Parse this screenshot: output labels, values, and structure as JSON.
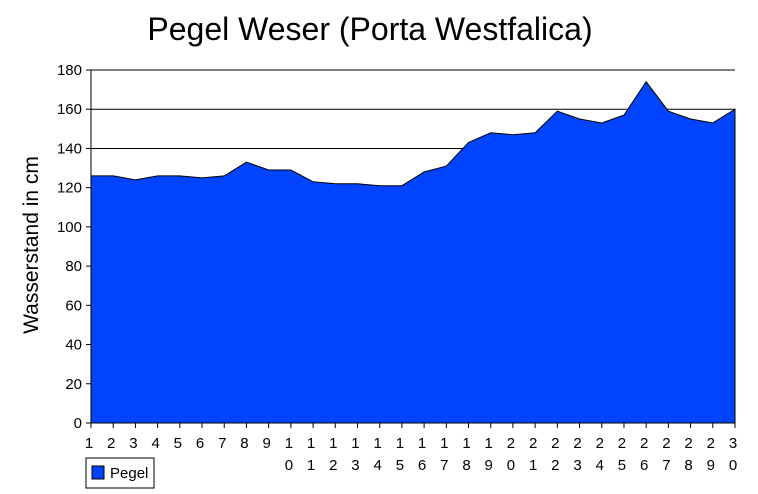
{
  "chart_data": {
    "type": "area",
    "title": "Pegel Weser (Porta Westfalica)",
    "xlabel": "",
    "ylabel": "Wasserstand in cm",
    "x": [
      1,
      2,
      3,
      4,
      5,
      6,
      7,
      8,
      9,
      10,
      11,
      12,
      13,
      14,
      15,
      16,
      17,
      18,
      19,
      20,
      21,
      22,
      23,
      24,
      25,
      26,
      27,
      28,
      29,
      30
    ],
    "ylim": [
      0,
      180
    ],
    "yticks": [
      0,
      20,
      40,
      60,
      80,
      100,
      120,
      140,
      160,
      180
    ],
    "grid": "horizontal",
    "legend_position": "bottom-left",
    "series": [
      {
        "name": "Pegel",
        "color": "#0044ff",
        "values": [
          126,
          126,
          124,
          126,
          126,
          125,
          126,
          133,
          129,
          129,
          123,
          122,
          122,
          121,
          121,
          128,
          131,
          143,
          148,
          147,
          148,
          159,
          155,
          153,
          157,
          174,
          159,
          155,
          153,
          160
        ]
      }
    ]
  }
}
